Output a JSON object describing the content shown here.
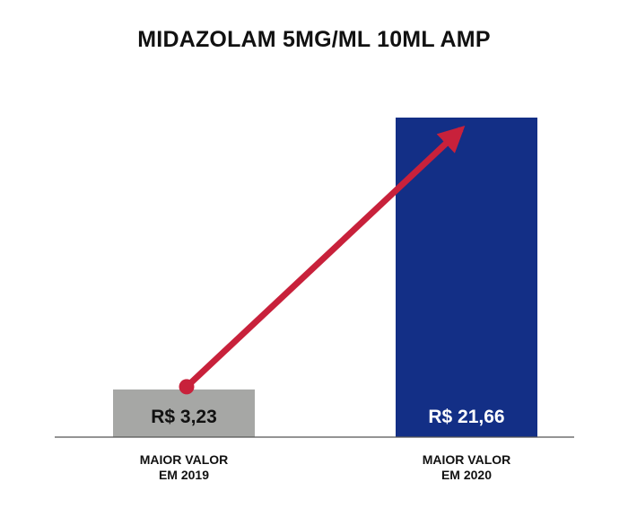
{
  "chart_data": {
    "type": "bar",
    "title": "MIDAZOLAM 5MG/ML 10ML AMP",
    "categories": [
      [
        "MAIOR VALOR",
        "EM 2019"
      ],
      [
        "MAIOR VALOR",
        "EM 2020"
      ]
    ],
    "values": [
      3.23,
      21.66
    ],
    "value_labels": [
      "R$ 3,23",
      "R$ 21,66"
    ],
    "ylim": [
      0,
      25
    ],
    "grid": false,
    "legend": "none",
    "colors": {
      "bars": [
        "#a6a7a5",
        "#132f86"
      ],
      "value_label_text": [
        "#111111",
        "#ffffff"
      ],
      "arrow": "#c8213b",
      "baseline": "#555555"
    }
  }
}
